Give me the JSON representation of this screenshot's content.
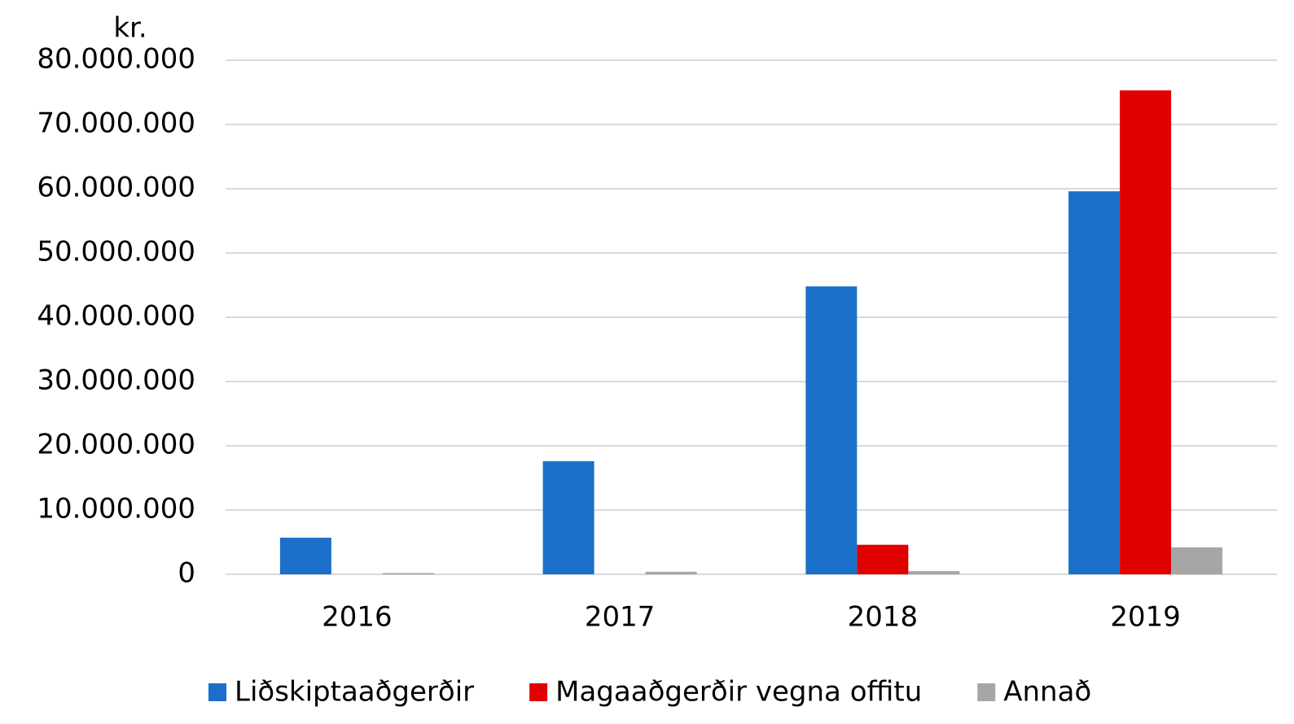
{
  "chart_data": {
    "type": "bar",
    "y_label": "kr.",
    "categories": [
      "2016",
      "2017",
      "2018",
      "2019"
    ],
    "series": [
      {
        "name": "Liðskiptaaðgerðir",
        "color": "#1a70c8",
        "values": [
          5700000,
          17600000,
          44800000,
          59600000
        ]
      },
      {
        "name": "Magaaðgerðir vegna offitu",
        "color": "#e00000",
        "values": [
          0,
          0,
          4600000,
          75300000
        ]
      },
      {
        "name": "Annað",
        "color": "#a6a6a6",
        "values": [
          200000,
          400000,
          500000,
          4200000
        ]
      }
    ],
    "ylim": [
      0,
      80000000
    ],
    "yticks": [
      0,
      {
        "value": 10000000,
        "label": "10.000.000"
      },
      {
        "value": 20000000,
        "label": "20.000.000"
      },
      {
        "value": 30000000,
        "label": "30.000.000"
      },
      {
        "value": 40000000,
        "label": "40.000.000"
      },
      {
        "value": 50000000,
        "label": "50.000.000"
      },
      {
        "value": 60000000,
        "label": "60.000.000"
      },
      {
        "value": 70000000,
        "label": "70.000.000"
      },
      {
        "value": 80000000,
        "label": "80.000.000"
      }
    ],
    "grid": true,
    "legend": "bottom"
  }
}
